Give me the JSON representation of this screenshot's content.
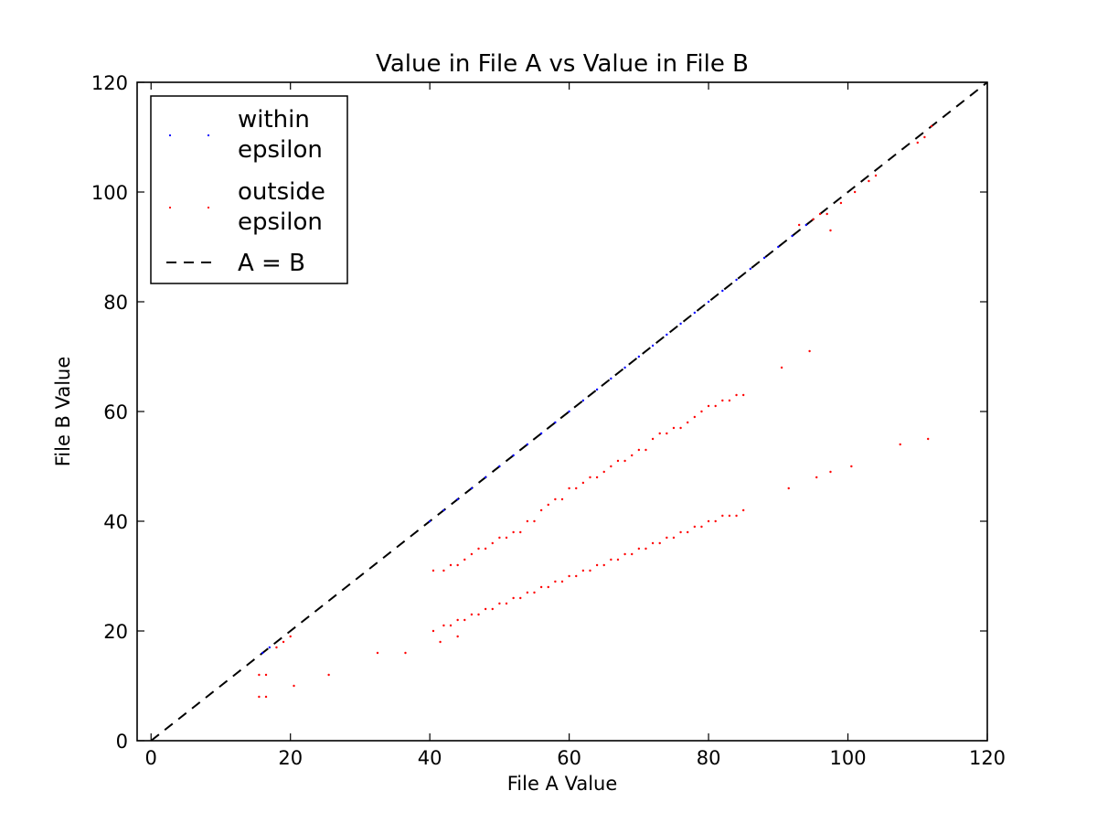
{
  "chart_data": {
    "type": "scatter",
    "title": "Value in File A vs Value in File B",
    "xlabel": "File A Value",
    "ylabel": "File B Value",
    "xlim": [
      -2,
      120
    ],
    "ylim": [
      0,
      120
    ],
    "xticks": [
      0,
      20,
      40,
      60,
      80,
      100,
      120
    ],
    "yticks": [
      0,
      20,
      40,
      60,
      80,
      100,
      120
    ],
    "grid": false,
    "legend_position": "top-left",
    "legend": {
      "within": [
        "within",
        "epsilon"
      ],
      "outside": [
        "outside",
        "epsilon"
      ],
      "line": "A = B"
    },
    "series": [
      {
        "name": "within epsilon",
        "color": "#0000ff",
        "marker": "pixel",
        "points": [
          [
            16,
            16
          ],
          [
            17,
            17
          ],
          [
            40,
            40
          ],
          [
            42,
            42
          ],
          [
            44,
            44
          ],
          [
            46,
            46
          ],
          [
            48,
            48
          ],
          [
            50,
            50
          ],
          [
            52,
            52
          ],
          [
            54,
            54
          ],
          [
            56,
            56
          ],
          [
            58,
            58
          ],
          [
            60,
            60
          ],
          [
            62,
            62
          ],
          [
            64,
            64
          ],
          [
            66,
            66
          ],
          [
            68,
            68
          ],
          [
            70,
            70
          ],
          [
            72,
            72
          ],
          [
            74,
            74
          ],
          [
            76,
            76
          ],
          [
            78,
            78
          ],
          [
            80,
            80
          ],
          [
            82,
            82
          ],
          [
            84,
            84
          ],
          [
            86,
            86
          ],
          [
            88,
            88
          ],
          [
            90,
            90
          ],
          [
            92,
            92
          ],
          [
            94,
            94
          ]
        ]
      },
      {
        "name": "outside epsilon",
        "color": "#ff0000",
        "marker": "pixel",
        "points": [
          [
            15.5,
            12
          ],
          [
            16.5,
            12
          ],
          [
            15.5,
            8
          ],
          [
            16.5,
            8
          ],
          [
            18,
            17
          ],
          [
            19,
            18
          ],
          [
            20,
            19
          ],
          [
            20.5,
            10
          ],
          [
            25.5,
            12
          ],
          [
            32.5,
            16
          ],
          [
            36.5,
            16
          ],
          [
            40.5,
            20
          ],
          [
            41.5,
            18
          ],
          [
            42,
            21
          ],
          [
            43,
            21
          ],
          [
            44,
            22
          ],
          [
            44,
            19
          ],
          [
            45,
            22
          ],
          [
            46,
            23
          ],
          [
            47,
            23
          ],
          [
            48,
            24
          ],
          [
            49,
            24
          ],
          [
            50,
            25
          ],
          [
            51,
            25
          ],
          [
            52,
            26
          ],
          [
            53,
            26
          ],
          [
            54,
            27
          ],
          [
            55,
            27
          ],
          [
            56,
            28
          ],
          [
            57,
            28
          ],
          [
            58,
            29
          ],
          [
            59,
            29
          ],
          [
            60,
            30
          ],
          [
            61,
            30
          ],
          [
            62,
            31
          ],
          [
            63,
            31
          ],
          [
            64,
            32
          ],
          [
            65,
            32
          ],
          [
            66,
            33
          ],
          [
            67,
            33
          ],
          [
            68,
            34
          ],
          [
            69,
            34
          ],
          [
            70,
            35
          ],
          [
            71,
            35
          ],
          [
            72,
            36
          ],
          [
            73,
            36
          ],
          [
            74,
            37
          ],
          [
            75,
            37
          ],
          [
            76,
            38
          ],
          [
            77,
            38
          ],
          [
            78,
            39
          ],
          [
            79,
            39
          ],
          [
            80,
            40
          ],
          [
            81,
            40
          ],
          [
            82,
            41
          ],
          [
            83,
            41
          ],
          [
            84,
            41
          ],
          [
            85,
            42
          ],
          [
            40.5,
            31
          ],
          [
            42,
            31
          ],
          [
            43,
            32
          ],
          [
            44,
            32
          ],
          [
            45,
            33
          ],
          [
            46,
            34
          ],
          [
            47,
            35
          ],
          [
            48,
            35
          ],
          [
            49,
            36
          ],
          [
            50,
            37
          ],
          [
            51,
            37
          ],
          [
            52,
            38
          ],
          [
            53,
            38
          ],
          [
            54,
            40
          ],
          [
            55,
            40
          ],
          [
            56,
            42
          ],
          [
            57,
            43
          ],
          [
            58,
            44
          ],
          [
            59,
            44
          ],
          [
            60,
            46
          ],
          [
            61,
            46
          ],
          [
            62,
            47
          ],
          [
            63,
            48
          ],
          [
            64,
            48
          ],
          [
            65,
            49
          ],
          [
            66,
            50
          ],
          [
            67,
            51
          ],
          [
            68,
            51
          ],
          [
            69,
            52
          ],
          [
            70,
            53
          ],
          [
            71,
            53
          ],
          [
            72,
            55
          ],
          [
            73,
            56
          ],
          [
            74,
            56
          ],
          [
            75,
            57
          ],
          [
            76,
            57
          ],
          [
            77,
            58
          ],
          [
            78,
            59
          ],
          [
            79,
            60
          ],
          [
            80,
            61
          ],
          [
            81,
            61
          ],
          [
            82,
            62
          ],
          [
            83,
            62
          ],
          [
            84,
            63
          ],
          [
            85,
            63
          ],
          [
            90.5,
            68
          ],
          [
            91.5,
            46
          ],
          [
            94.5,
            71
          ],
          [
            95.5,
            48
          ],
          [
            97.5,
            49
          ],
          [
            100.5,
            50
          ],
          [
            107.5,
            54
          ],
          [
            111.5,
            55
          ],
          [
            93,
            94
          ],
          [
            95,
            95
          ],
          [
            96,
            96
          ],
          [
            97,
            96
          ],
          [
            97.5,
            93
          ],
          [
            99,
            98
          ],
          [
            101,
            100
          ],
          [
            103,
            102
          ],
          [
            104,
            103
          ],
          [
            110,
            109
          ],
          [
            111,
            110
          ],
          [
            112,
            112
          ]
        ]
      }
    ]
  }
}
